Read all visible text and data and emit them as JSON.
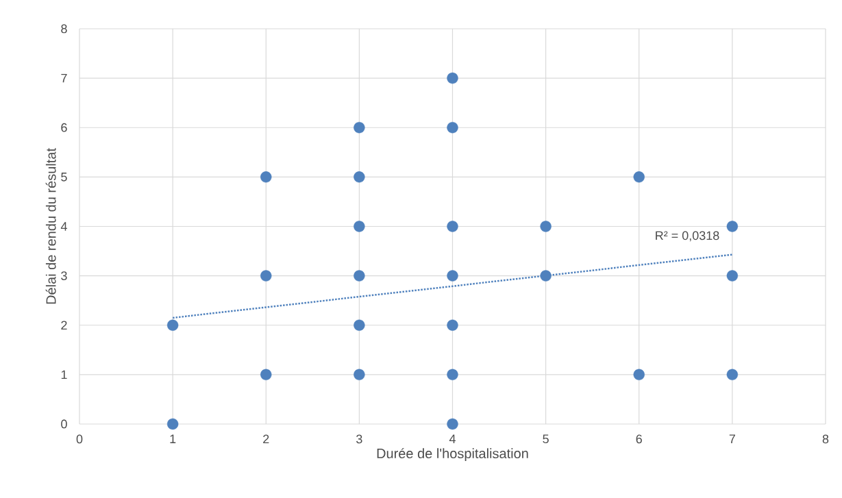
{
  "chart_data": {
    "type": "scatter",
    "xlabel": "Durée de l'hospitalisation",
    "ylabel": "Délai de rendu du résultat",
    "series": [
      {
        "color": "#4f81bd",
        "marker": "circle",
        "x": [
          1,
          1,
          2,
          2,
          2,
          3,
          3,
          3,
          3,
          3,
          3,
          4,
          4,
          4,
          4,
          4,
          4,
          4,
          5,
          5,
          6,
          6,
          7,
          7,
          7
        ],
        "values": [
          0,
          2,
          1,
          3,
          5,
          1,
          2,
          3,
          4,
          5,
          6,
          0,
          1,
          2,
          3,
          4,
          6,
          7,
          3,
          4,
          1,
          5,
          1,
          3,
          4
        ]
      },
      {
        "type": "line",
        "color": "#4f81bd",
        "line_style": "dotted",
        "marker": "none",
        "x": [
          1,
          7
        ],
        "values": [
          2.15,
          3.43
        ]
      }
    ],
    "annotations": [
      "R² = 0,0318"
    ],
    "xlim": [
      0,
      8
    ],
    "ylim": [
      0,
      8
    ],
    "xticks": [
      0,
      1,
      2,
      3,
      4,
      5,
      6,
      7,
      8
    ],
    "yticks": [
      0,
      1,
      2,
      3,
      4,
      5,
      6,
      7,
      8
    ],
    "grid": true
  }
}
